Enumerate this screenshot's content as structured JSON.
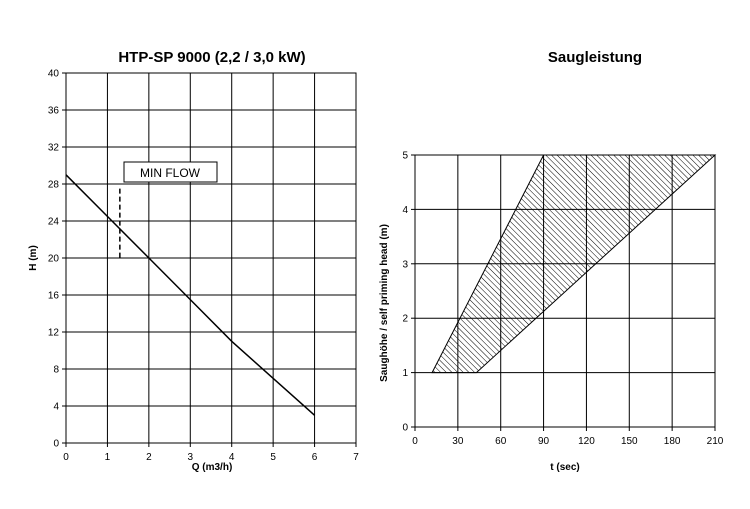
{
  "chart_data": [
    {
      "type": "line",
      "title": "HTP-SP 9000 (2,2 / 3,0 kW)",
      "xlabel": "Q (m3/h)",
      "ylabel": "H (m)",
      "xlim": [
        0,
        7
      ],
      "ylim": [
        0,
        40
      ],
      "x_ticks": [
        "0",
        "1",
        "2",
        "3",
        "4",
        "5",
        "6",
        "7"
      ],
      "y_ticks": [
        "0",
        "4",
        "8",
        "12",
        "16",
        "20",
        "24",
        "28",
        "32",
        "36",
        "40"
      ],
      "grid": true,
      "series": [
        {
          "x": [
            0,
            1,
            2,
            3,
            4,
            5,
            6
          ],
          "y": [
            29,
            24.5,
            20,
            15.5,
            11,
            7,
            3
          ]
        }
      ],
      "annotation": {
        "text": "MIN FLOW",
        "x": 1.3,
        "y_range": [
          20,
          27.5
        ]
      }
    },
    {
      "type": "area",
      "title": "Saugleistung",
      "xlabel": "t  (sec)",
      "ylabel": "Saughöhe / self priming head (m)",
      "xlim": [
        0,
        210
      ],
      "ylim": [
        0,
        5
      ],
      "x_ticks": [
        "0",
        "30",
        "60",
        "90",
        "120",
        "150",
        "180",
        "210"
      ],
      "y_ticks": [
        "0",
        "1",
        "2",
        "3",
        "4",
        "5"
      ],
      "grid": true,
      "band": {
        "upper_edge": {
          "x": [
            12,
            90
          ],
          "y": [
            1,
            5
          ]
        },
        "lower_edge": {
          "x": [
            43,
            210
          ],
          "y": [
            1,
            5
          ]
        },
        "fill": "hatched"
      }
    }
  ]
}
